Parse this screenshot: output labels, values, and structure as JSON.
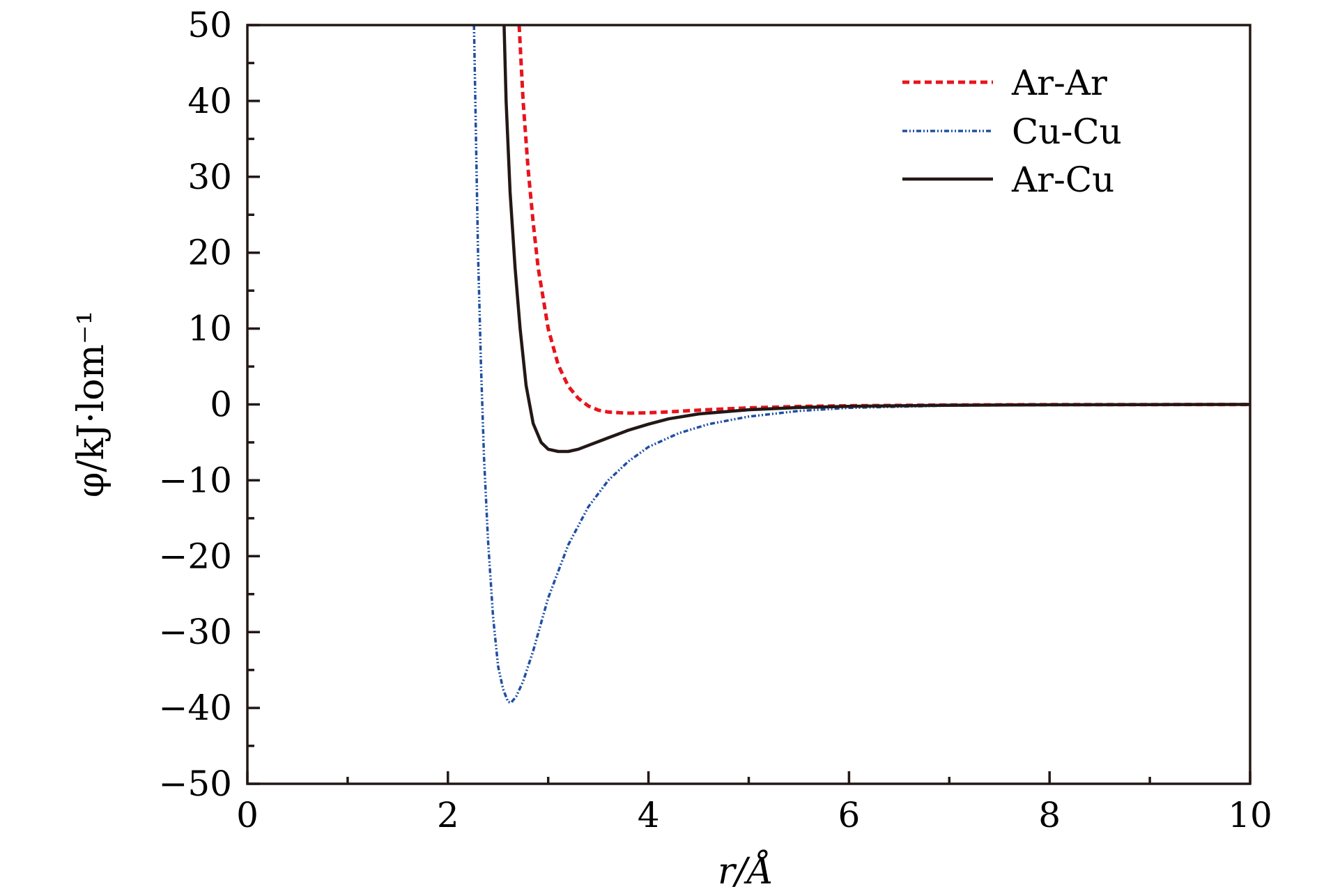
{
  "chart_data": {
    "type": "line",
    "title": "",
    "xlabel": "r/Å",
    "ylabel": "φ/kJ·lom⁻¹",
    "xlim": [
      0,
      10
    ],
    "ylim": [
      -50,
      50
    ],
    "x_ticks": [
      0,
      2,
      4,
      6,
      8,
      10
    ],
    "x_tick_labels": [
      "0",
      "2",
      "4",
      "6",
      "8",
      "10"
    ],
    "y_ticks": [
      50,
      40,
      30,
      20,
      10,
      0,
      -10,
      -20,
      -30,
      -40,
      -50
    ],
    "y_tick_labels": [
      "50",
      "40",
      "30",
      "20",
      "10",
      "0",
      "−10",
      "−20",
      "−30",
      "−40",
      "−50"
    ],
    "grid": false,
    "legend_position": "top-right",
    "series": [
      {
        "name": "Ar-Ar",
        "color": "#e8141c",
        "style": "dashed",
        "x": [
          2.71,
          2.75,
          2.8,
          2.85,
          2.9,
          3.0,
          3.1,
          3.2,
          3.3,
          3.4,
          3.5,
          3.6,
          3.7,
          3.82,
          4.0,
          4.2,
          4.5,
          5.0,
          5.5,
          6.0,
          7.0,
          8.0,
          9.0,
          10.0
        ],
        "y": [
          50,
          40,
          31,
          24,
          18,
          10,
          5.2,
          2.4,
          0.8,
          -0.2,
          -0.75,
          -1.0,
          -1.08,
          -1.15,
          -1.1,
          -0.98,
          -0.75,
          -0.45,
          -0.27,
          -0.17,
          -0.07,
          -0.03,
          -0.015,
          -0.01
        ]
      },
      {
        "name": "Cu-Cu",
        "color": "#1f4fa3",
        "style": "dash-dot",
        "x": [
          2.26,
          2.28,
          2.3,
          2.33,
          2.36,
          2.4,
          2.45,
          2.5,
          2.55,
          2.6,
          2.63,
          2.68,
          2.75,
          2.85,
          3.0,
          3.2,
          3.4,
          3.6,
          3.8,
          4.0,
          4.3,
          4.6,
          5.0,
          5.5,
          6.0,
          7.0,
          8.0,
          9.0,
          10.0
        ],
        "y": [
          50,
          35,
          20,
          5,
          -7,
          -18,
          -28,
          -34.5,
          -37.5,
          -39.2,
          -39.3,
          -38.5,
          -36.5,
          -32.5,
          -25.5,
          -18.5,
          -13.5,
          -10,
          -7.5,
          -5.6,
          -3.8,
          -2.6,
          -1.6,
          -0.85,
          -0.45,
          -0.15,
          -0.05,
          -0.02,
          0
        ]
      },
      {
        "name": "Ar-Cu",
        "color": "#231815",
        "style": "solid",
        "x": [
          2.56,
          2.58,
          2.62,
          2.67,
          2.72,
          2.78,
          2.85,
          2.93,
          3.0,
          3.1,
          3.2,
          3.3,
          3.4,
          3.5,
          3.6,
          3.7,
          3.8,
          4.0,
          4.2,
          4.5,
          5.0,
          5.5,
          6.0,
          7.0,
          8.0,
          9.0,
          10.0
        ],
        "y": [
          50,
          40,
          28,
          18,
          10,
          2.5,
          -2.5,
          -5.0,
          -5.9,
          -6.2,
          -6.2,
          -5.9,
          -5.4,
          -4.9,
          -4.4,
          -3.9,
          -3.4,
          -2.6,
          -1.9,
          -1.25,
          -0.7,
          -0.4,
          -0.25,
          -0.1,
          -0.05,
          -0.02,
          0
        ]
      }
    ]
  }
}
